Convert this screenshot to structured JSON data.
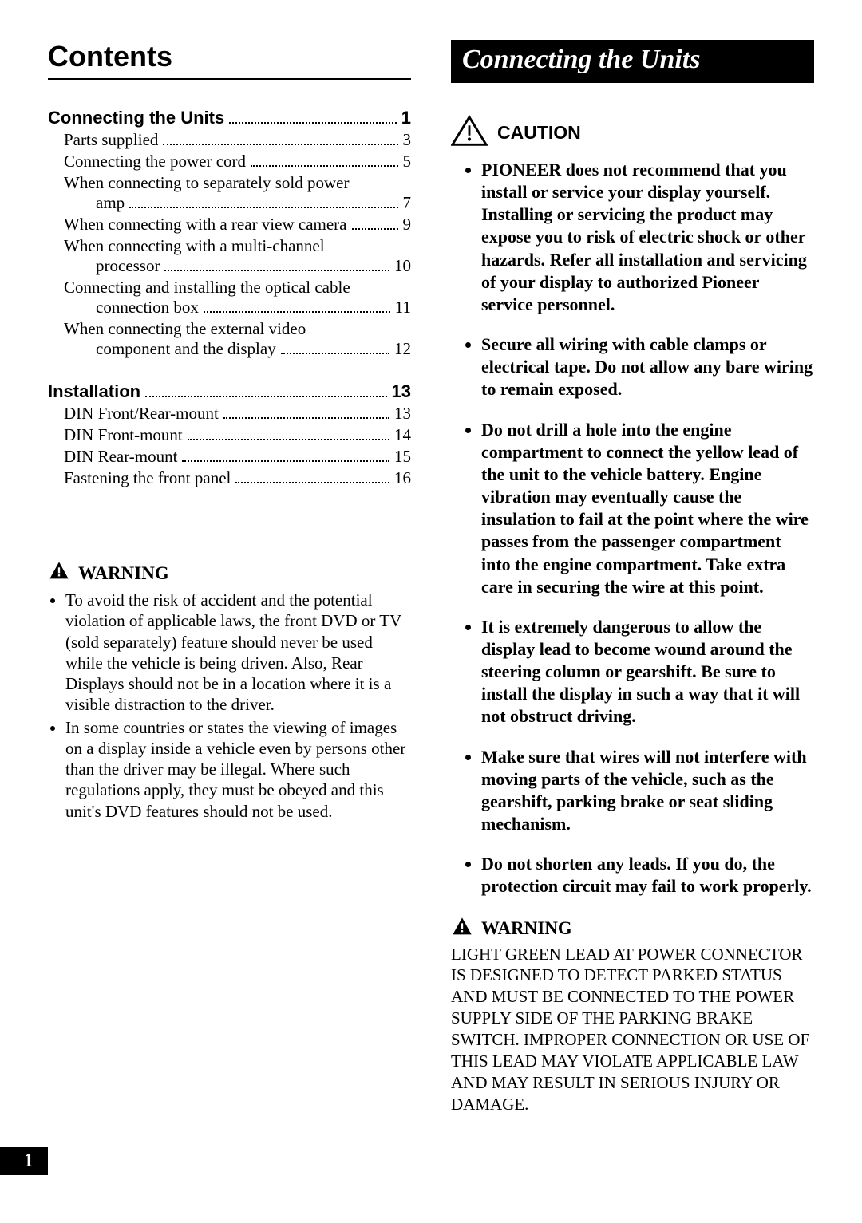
{
  "page_number": "1",
  "left": {
    "title": "Contents",
    "sections": [
      {
        "heading": "Connecting the Units",
        "page": "1",
        "items": [
          {
            "text": "Parts supplied",
            "tail": "",
            "page": "3",
            "wrap": false
          },
          {
            "text": "Connecting the power cord",
            "tail": "",
            "page": "5",
            "wrap": false
          },
          {
            "text": "When connecting to separately sold power",
            "tail": "amp",
            "page": "7",
            "wrap": true
          },
          {
            "text": "When connecting with a rear view camera",
            "tail": "",
            "page": "9",
            "wrap": false
          },
          {
            "text": "When connecting with a multi-channel",
            "tail": "processor",
            "page": "10",
            "wrap": true
          },
          {
            "text": "Connecting and installing the optical cable",
            "tail": "connection box",
            "page": "11",
            "wrap": true
          },
          {
            "text": "When connecting the external video",
            "tail": "component and the display",
            "page": "12",
            "wrap": true
          }
        ]
      },
      {
        "heading": "Installation",
        "page": "13",
        "items": [
          {
            "text": "DIN Front/Rear-mount",
            "tail": "",
            "page": "13",
            "wrap": false
          },
          {
            "text": "DIN Front-mount",
            "tail": "",
            "page": "14",
            "wrap": false
          },
          {
            "text": "DIN Rear-mount",
            "tail": "",
            "page": "15",
            "wrap": false
          },
          {
            "text": "Fastening the front panel",
            "tail": "",
            "page": "16",
            "wrap": false
          }
        ]
      }
    ],
    "warning_label": "WARNING",
    "warning_items": [
      "To avoid the risk of accident and the potential violation of applicable laws, the front DVD or TV (sold separately) feature should never be used while the vehicle is being driven. Also, Rear Displays should not be in a location where it is a visible distraction to the driver.",
      "In some countries or states the viewing of images on a display inside a vehicle even by persons other than the driver may be illegal. Where such regulations apply, they must be obeyed and this unit's DVD features should not be used."
    ]
  },
  "right": {
    "banner": "Connecting the Units",
    "caution_label": "CAUTION",
    "caution_items": [
      "PIONEER does not recommend that you install or service your display yourself. Installing or servicing the product may expose you to risk of electric shock or other hazards. Refer all installation and servicing of your display to authorized Pioneer service personnel.",
      "Secure all wiring with cable clamps or electrical tape. Do not allow any bare wiring to remain exposed.",
      "Do not drill a hole into the engine compartment to connect the yellow lead of the unit to the vehicle battery. Engine vibration may eventually cause the insulation to fail at the point where the wire passes from the passenger compartment into the engine compartment. Take extra care in securing the wire at this point.",
      "It is extremely dangerous to allow the display lead to become wound around the steering column or gearshift. Be sure to install the display in such a way that it will not obstruct driving.",
      "Make sure that wires will not interfere with moving parts of the vehicle, such as the gearshift, parking brake or seat sliding mechanism.",
      "Do not shorten any leads. If you do, the protection circuit may fail to work properly."
    ],
    "warning_label": "WARNING",
    "warning_body": "LIGHT GREEN LEAD AT POWER CONNECTOR IS DESIGNED TO DETECT PARKED STATUS AND MUST BE CONNECTED TO THE POWER SUPPLY SIDE OF THE PARKING BRAKE SWITCH. IMPROPER CONNECTION OR USE OF THIS LEAD MAY VIOLATE APPLICABLE LAW AND MAY RESULT IN SERIOUS INJURY OR DAMAGE."
  }
}
